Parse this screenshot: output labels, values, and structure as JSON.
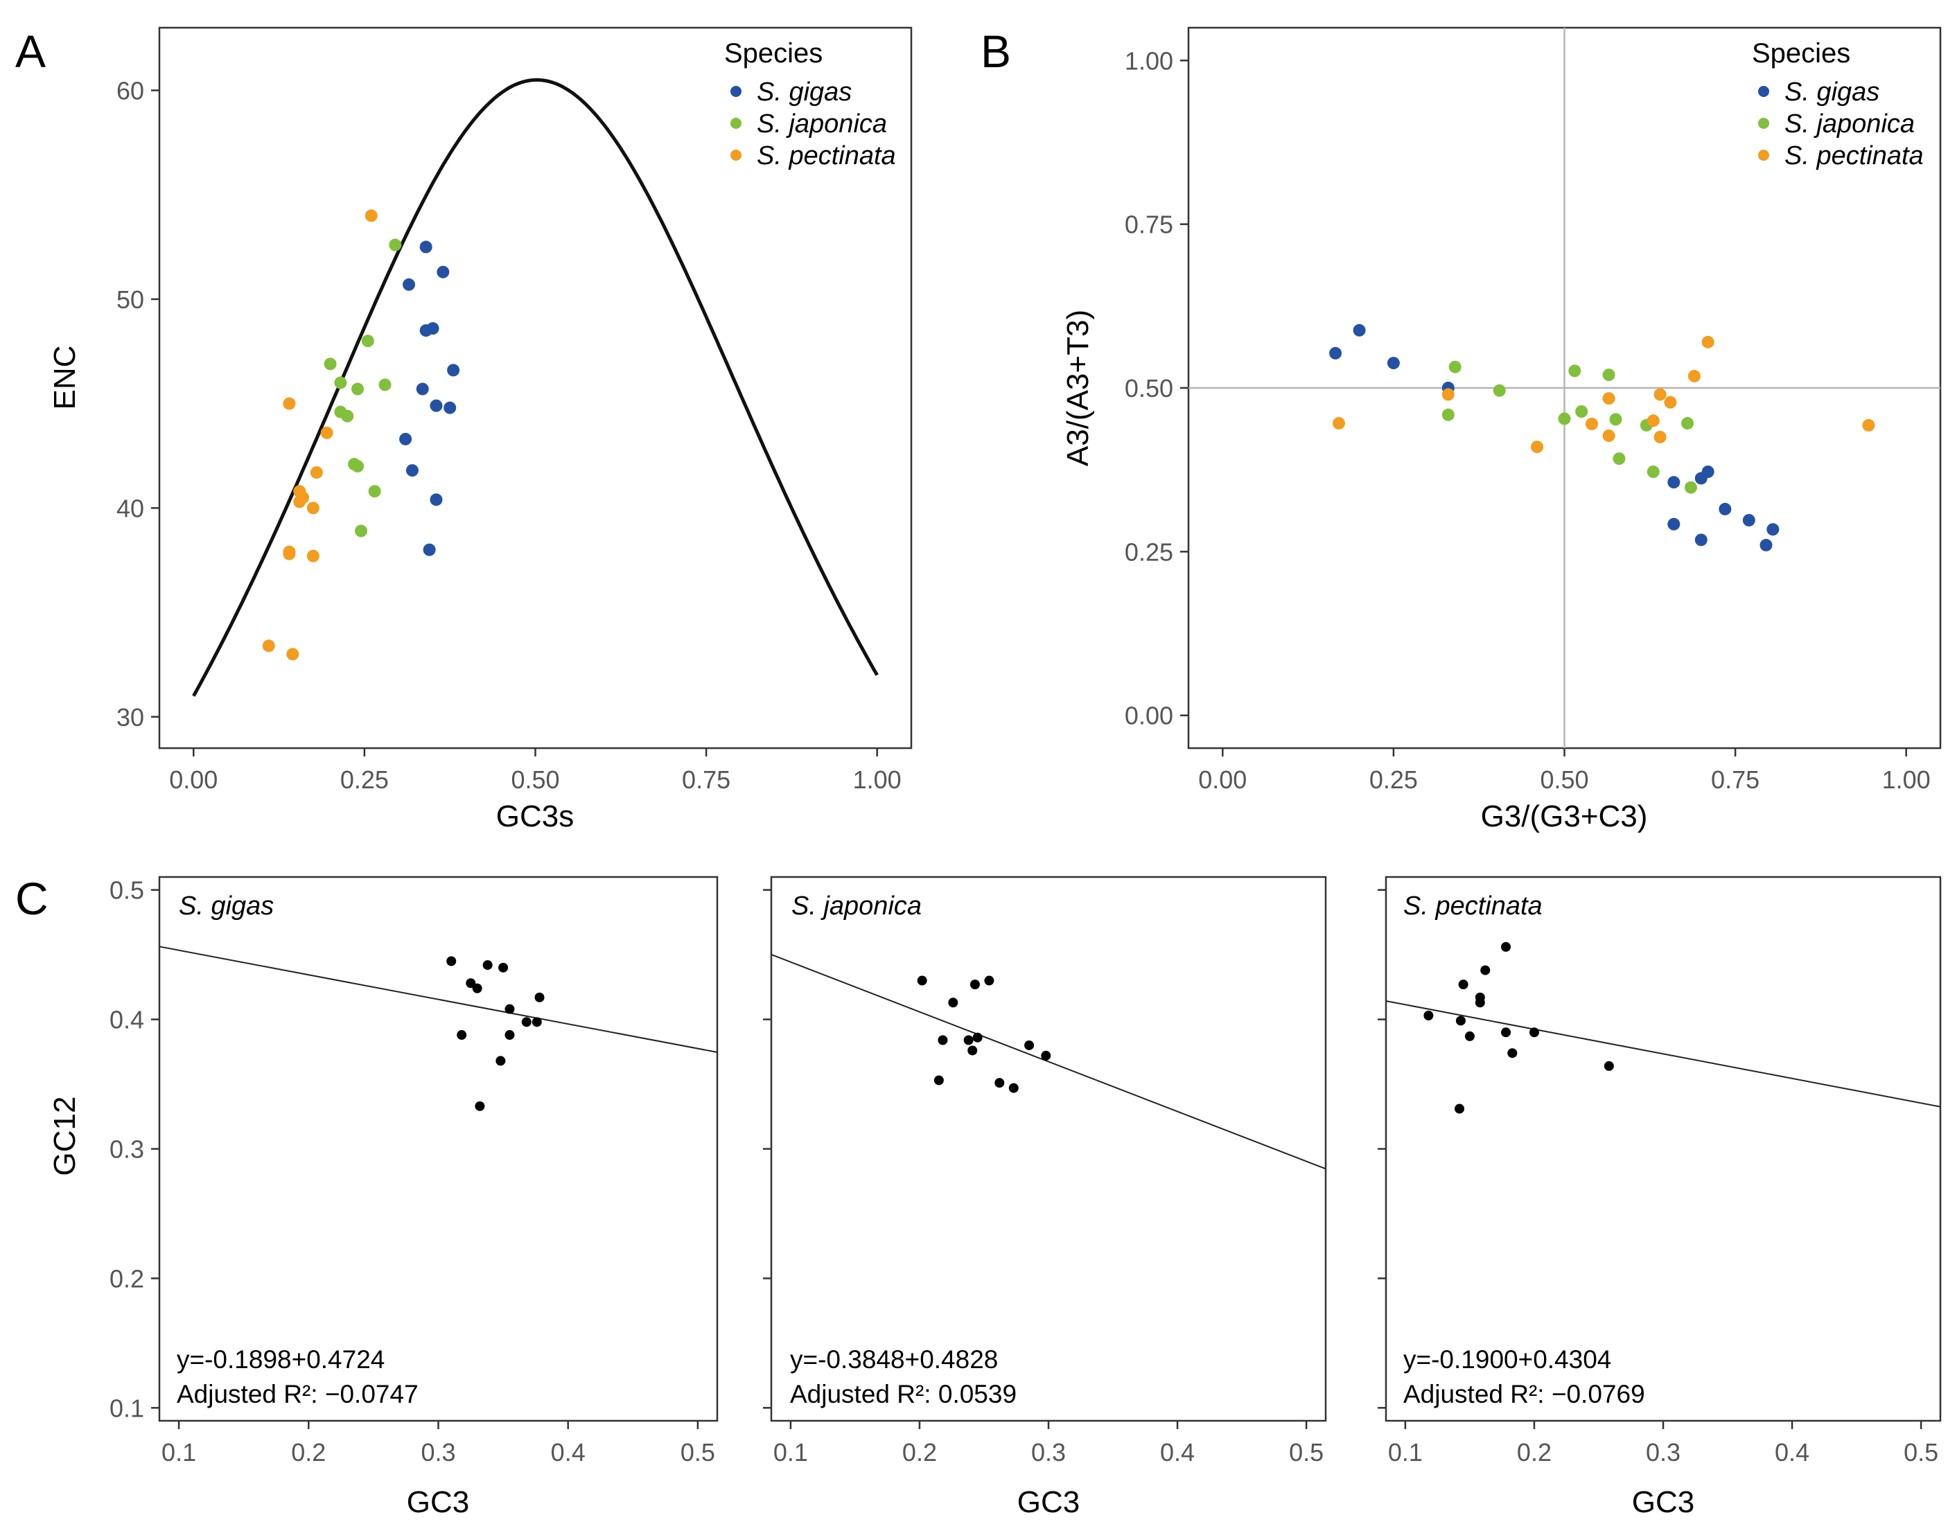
{
  "colors": {
    "S. gigas": "#2451a4",
    "S. japonica": "#80c03b",
    "S. pectinata": "#f39c1e"
  },
  "chart_data": [
    {
      "panel": "A",
      "type": "scatter",
      "xlabel": "GC3s",
      "ylabel": "ENC",
      "xlim": [
        -0.05,
        1.05
      ],
      "ylim": [
        28.5,
        63
      ],
      "xticks": [
        "0.00",
        "0.25",
        "0.50",
        "0.75",
        "1.00"
      ],
      "yticks": [
        "30",
        "40",
        "50",
        "60"
      ],
      "legend_title": "Species",
      "legend_position": "top-right",
      "expected_curve": "ENC = 2 + s + 29/(s^2 + (1-s)^2)",
      "series": [
        {
          "name": "S. gigas",
          "points": [
            [
              0.34,
              52.5
            ],
            [
              0.365,
              51.3
            ],
            [
              0.315,
              50.7
            ],
            [
              0.34,
              48.5
            ],
            [
              0.35,
              48.6
            ],
            [
              0.38,
              46.6
            ],
            [
              0.335,
              45.7
            ],
            [
              0.355,
              44.9
            ],
            [
              0.375,
              44.8
            ],
            [
              0.31,
              43.3
            ],
            [
              0.32,
              41.8
            ],
            [
              0.355,
              40.4
            ],
            [
              0.345,
              38.0
            ]
          ]
        },
        {
          "name": "S. japonica",
          "points": [
            [
              0.295,
              52.6
            ],
            [
              0.255,
              48.0
            ],
            [
              0.2,
              46.9
            ],
            [
              0.215,
              46.0
            ],
            [
              0.28,
              45.9
            ],
            [
              0.24,
              45.7
            ],
            [
              0.215,
              44.6
            ],
            [
              0.225,
              44.4
            ],
            [
              0.235,
              42.1
            ],
            [
              0.24,
              42.0
            ],
            [
              0.265,
              40.8
            ],
            [
              0.245,
              38.9
            ]
          ]
        },
        {
          "name": "S. pectinata",
          "points": [
            [
              0.26,
              54.0
            ],
            [
              0.14,
              45.0
            ],
            [
              0.195,
              43.6
            ],
            [
              0.18,
              41.7
            ],
            [
              0.155,
              40.8
            ],
            [
              0.16,
              40.5
            ],
            [
              0.155,
              40.3
            ],
            [
              0.175,
              40.0
            ],
            [
              0.14,
              37.9
            ],
            [
              0.14,
              37.8
            ],
            [
              0.175,
              37.7
            ],
            [
              0.11,
              33.4
            ],
            [
              0.145,
              33.0
            ]
          ]
        }
      ]
    },
    {
      "panel": "B",
      "type": "scatter",
      "xlabel": "G3/(G3+C3)",
      "ylabel": "A3/(A3+T3)",
      "xlim": [
        -0.05,
        1.05
      ],
      "ylim": [
        -0.05,
        1.05
      ],
      "xticks": [
        "0.00",
        "0.25",
        "0.50",
        "0.75",
        "1.00"
      ],
      "yticks": [
        "0.00",
        "0.25",
        "0.50",
        "0.75",
        "1.00"
      ],
      "reference_lines": {
        "x": 0.5,
        "y": 0.5
      },
      "legend_title": "Species",
      "legend_position": "top-right",
      "series": [
        {
          "name": "S. gigas",
          "points": [
            [
              0.165,
              0.553
            ],
            [
              0.2,
              0.588
            ],
            [
              0.25,
              0.538
            ],
            [
              0.33,
              0.5
            ],
            [
              0.66,
              0.356
            ],
            [
              0.7,
              0.362
            ],
            [
              0.71,
              0.372
            ],
            [
              0.735,
              0.315
            ],
            [
              0.77,
              0.298
            ],
            [
              0.66,
              0.292
            ],
            [
              0.7,
              0.268
            ],
            [
              0.795,
              0.26
            ],
            [
              0.805,
              0.284
            ]
          ]
        },
        {
          "name": "S. japonica",
          "points": [
            [
              0.34,
              0.532
            ],
            [
              0.33,
              0.459
            ],
            [
              0.405,
              0.496
            ],
            [
              0.5,
              0.453
            ],
            [
              0.515,
              0.526
            ],
            [
              0.525,
              0.464
            ],
            [
              0.565,
              0.52
            ],
            [
              0.575,
              0.452
            ],
            [
              0.58,
              0.392
            ],
            [
              0.62,
              0.443
            ],
            [
              0.63,
              0.372
            ],
            [
              0.68,
              0.446
            ],
            [
              0.685,
              0.348
            ]
          ]
        },
        {
          "name": "S. pectinata",
          "points": [
            [
              0.17,
              0.446
            ],
            [
              0.33,
              0.49
            ],
            [
              0.46,
              0.41
            ],
            [
              0.54,
              0.445
            ],
            [
              0.565,
              0.484
            ],
            [
              0.565,
              0.427
            ],
            [
              0.63,
              0.45
            ],
            [
              0.64,
              0.49
            ],
            [
              0.64,
              0.425
            ],
            [
              0.655,
              0.478
            ],
            [
              0.69,
              0.518
            ],
            [
              0.71,
              0.57
            ],
            [
              0.945,
              0.443
            ]
          ]
        }
      ]
    },
    {
      "panel": "C",
      "type": "scatter",
      "xlabel": "GC3",
      "ylabel": "GC12",
      "xlim": [
        0.085,
        0.515
      ],
      "ylim": [
        0.09,
        0.51
      ],
      "xticks": [
        "0.1",
        "0.2",
        "0.3",
        "0.4",
        "0.5"
      ],
      "yticks": [
        "0.1",
        "0.2",
        "0.3",
        "0.4",
        "0.5"
      ],
      "subplots": [
        {
          "title": "S. gigas",
          "equation": "y=-0.1898+0.4724",
          "r2_label": "Adjusted R²: −0.0747",
          "fit": {
            "slope": -0.1898,
            "intercept": 0.4724
          },
          "points": [
            [
              0.31,
              0.445
            ],
            [
              0.338,
              0.442
            ],
            [
              0.35,
              0.44
            ],
            [
              0.325,
              0.428
            ],
            [
              0.33,
              0.424
            ],
            [
              0.378,
              0.417
            ],
            [
              0.355,
              0.408
            ],
            [
              0.368,
              0.398
            ],
            [
              0.376,
              0.398
            ],
            [
              0.318,
              0.388
            ],
            [
              0.355,
              0.388
            ],
            [
              0.348,
              0.368
            ],
            [
              0.332,
              0.333
            ]
          ]
        },
        {
          "title": "S. japonica",
          "equation": "y=-0.3848+0.4828",
          "r2_label": "Adjusted R²: 0.0539",
          "fit": {
            "slope": -0.3848,
            "intercept": 0.4828
          },
          "points": [
            [
              0.202,
              0.43
            ],
            [
              0.254,
              0.43
            ],
            [
              0.243,
              0.427
            ],
            [
              0.226,
              0.413
            ],
            [
              0.218,
              0.384
            ],
            [
              0.238,
              0.384
            ],
            [
              0.245,
              0.386
            ],
            [
              0.241,
              0.376
            ],
            [
              0.285,
              0.38
            ],
            [
              0.298,
              0.372
            ],
            [
              0.215,
              0.353
            ],
            [
              0.262,
              0.351
            ],
            [
              0.273,
              0.347
            ]
          ]
        },
        {
          "title": "S. pectinata",
          "equation": "y=-0.1900+0.4304",
          "r2_label": "Adjusted R²: −0.0769",
          "fit": {
            "slope": -0.19,
            "intercept": 0.4304
          },
          "points": [
            [
              0.178,
              0.456
            ],
            [
              0.162,
              0.438
            ],
            [
              0.145,
              0.427
            ],
            [
              0.158,
              0.417
            ],
            [
              0.158,
              0.413
            ],
            [
              0.118,
              0.403
            ],
            [
              0.143,
              0.399
            ],
            [
              0.15,
              0.387
            ],
            [
              0.178,
              0.39
            ],
            [
              0.2,
              0.39
            ],
            [
              0.183,
              0.374
            ],
            [
              0.258,
              0.364
            ],
            [
              0.142,
              0.331
            ]
          ]
        }
      ]
    }
  ]
}
